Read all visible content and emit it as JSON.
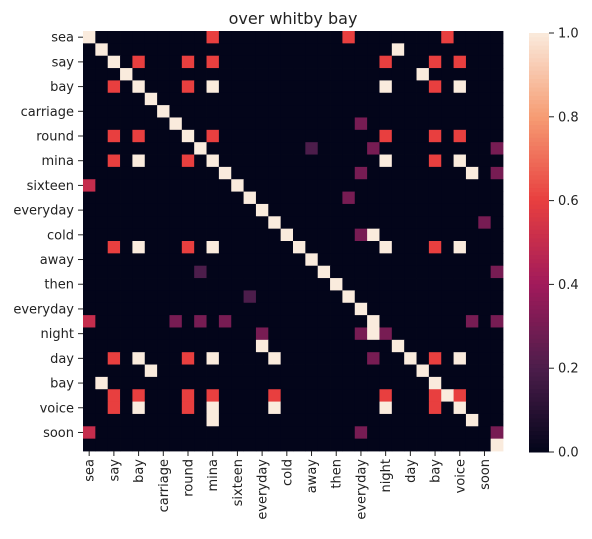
{
  "chart_data": {
    "type": "heatmap",
    "title": "over whitby bay",
    "xlabel": "",
    "ylabel": "",
    "row_labels": [
      "sea",
      "",
      "say",
      "",
      "bay",
      "",
      "carriage",
      "",
      "round",
      "",
      "mina",
      "",
      "sixteen",
      "",
      "everyday",
      "",
      "cold",
      "",
      "away",
      "",
      "then",
      "",
      "everyday",
      "",
      "night",
      "",
      "day",
      "",
      "bay",
      "",
      "voice",
      "",
      "soon",
      ""
    ],
    "col_labels": [
      "sea",
      "",
      "say",
      "",
      "bay",
      "",
      "carriage",
      "",
      "round",
      "",
      "mina",
      "",
      "sixteen",
      "",
      "everyday",
      "",
      "cold",
      "",
      "away",
      "",
      "then",
      "",
      "everyday",
      "",
      "night",
      "",
      "day",
      "",
      "bay",
      "",
      "voice",
      "",
      "soon",
      ""
    ],
    "zlim": [
      0,
      1
    ],
    "colorbar_ticks": [
      "0.0",
      "0.2",
      "0.4",
      "0.6",
      "0.8",
      "1.0"
    ],
    "colormap": [
      "#03051a",
      "#4c1d4b",
      "#a11a5b",
      "#e83f3f",
      "#f69c73",
      "#faebdd"
    ],
    "values": [
      [
        1,
        0,
        0,
        0,
        0,
        0,
        0,
        0,
        0,
        0,
        0.6,
        0,
        0,
        0,
        0,
        0,
        0,
        0,
        0,
        0,
        0,
        0.6,
        0,
        0,
        0,
        0,
        0,
        0,
        0,
        0.6,
        0,
        0,
        0,
        0
      ],
      [
        0,
        1,
        0,
        0,
        0,
        0,
        0,
        0,
        0,
        0,
        0,
        0,
        0,
        0,
        0,
        0,
        0,
        0,
        0,
        0,
        0,
        0,
        0,
        0,
        0,
        1,
        0,
        0,
        0,
        0,
        0,
        0,
        0,
        0
      ],
      [
        0,
        0,
        1,
        0,
        0.6,
        0,
        0,
        0,
        0.6,
        0,
        0.6,
        0,
        0,
        0,
        0,
        0,
        0,
        0,
        0,
        0,
        0,
        0,
        0,
        0,
        0.6,
        0,
        0,
        0,
        0.6,
        0,
        0.6,
        0,
        0,
        0
      ],
      [
        0,
        0,
        0,
        1,
        0,
        0,
        0,
        0,
        0,
        0,
        0,
        0,
        0,
        0,
        0,
        0,
        0,
        0,
        0,
        0,
        0,
        0,
        0,
        0,
        0,
        0,
        0,
        1,
        0,
        0,
        0,
        0,
        0,
        0
      ],
      [
        0,
        0,
        0.6,
        0,
        1,
        0,
        0,
        0,
        0.6,
        0,
        1,
        0,
        0,
        0,
        0,
        0,
        0,
        0,
        0,
        0,
        0,
        0,
        0,
        0,
        1,
        0,
        0,
        0,
        0.6,
        0,
        1,
        0,
        0,
        0
      ],
      [
        0,
        0,
        0,
        0,
        0,
        1,
        0,
        0,
        0,
        0,
        0,
        0,
        0,
        0,
        0,
        0,
        0,
        0,
        0,
        0,
        0,
        0,
        0,
        0,
        0,
        0,
        0,
        0,
        0,
        0,
        0,
        0,
        0,
        0
      ],
      [
        0,
        0,
        0,
        0,
        0,
        0,
        1,
        0,
        0,
        0,
        0,
        0,
        0,
        0,
        0,
        0,
        0,
        0,
        0,
        0,
        0,
        0,
        0,
        0,
        0,
        0,
        0,
        0,
        0,
        0,
        0,
        0,
        0,
        0
      ],
      [
        0,
        0,
        0,
        0,
        0,
        0,
        0,
        1,
        0,
        0,
        0,
        0,
        0,
        0,
        0,
        0,
        0,
        0,
        0,
        0,
        0,
        0,
        0.3,
        0,
        0,
        0,
        0,
        0,
        0,
        0,
        0,
        0,
        0,
        0
      ],
      [
        0,
        0,
        0.6,
        0,
        0.6,
        0,
        0,
        0,
        1,
        0,
        0.6,
        0,
        0,
        0,
        0,
        0,
        0,
        0,
        0,
        0,
        0,
        0,
        0,
        0,
        0.6,
        0,
        0,
        0,
        0.6,
        0,
        0.6,
        0,
        0,
        0
      ],
      [
        0,
        0,
        0,
        0,
        0,
        0,
        0,
        0,
        0,
        1,
        0,
        0,
        0,
        0,
        0,
        0,
        0,
        0,
        0.2,
        0,
        0,
        0,
        0,
        0.3,
        0,
        0,
        0,
        0,
        0,
        0,
        0,
        0,
        0,
        0.3
      ],
      [
        0,
        0,
        0.6,
        0,
        1,
        0,
        0,
        0,
        0.6,
        0,
        1,
        0,
        0,
        0,
        0,
        0,
        0,
        0,
        0,
        0,
        0,
        0,
        0,
        0,
        1,
        0,
        0,
        0,
        0.6,
        0,
        1,
        0,
        0,
        0
      ],
      [
        0,
        0,
        0,
        0,
        0,
        0,
        0,
        0,
        0,
        0,
        0,
        1,
        0,
        0,
        0,
        0,
        0,
        0,
        0,
        0,
        0,
        0,
        0.3,
        0,
        0,
        0,
        0,
        0,
        0,
        0,
        0,
        1,
        0,
        0.3
      ],
      [
        0.5,
        0,
        0,
        0,
        0,
        0,
        0,
        0,
        0,
        0,
        0,
        0,
        1,
        0,
        0,
        0,
        0,
        0,
        0,
        0,
        0,
        0,
        0,
        0,
        0,
        0,
        0,
        0,
        0,
        0,
        0,
        0,
        0,
        0
      ],
      [
        0,
        0,
        0,
        0,
        0,
        0,
        0,
        0,
        0,
        0,
        0,
        0,
        0,
        1,
        0,
        0,
        0,
        0,
        0,
        0,
        0,
        0.3,
        0,
        0,
        0,
        0,
        0,
        0,
        0,
        0,
        0,
        0,
        0,
        0
      ],
      [
        0,
        0,
        0,
        0,
        0,
        0,
        0,
        0,
        0,
        0,
        0,
        0,
        0,
        0,
        1,
        0,
        0,
        0,
        0,
        0,
        0,
        0,
        0,
        0,
        0,
        0,
        0,
        0,
        0,
        0,
        0,
        0,
        0,
        0
      ],
      [
        0,
        0,
        0,
        0,
        0,
        0,
        0,
        0,
        0,
        0,
        0,
        0,
        0,
        0,
        0,
        1,
        0,
        0,
        0,
        0,
        0,
        0,
        0,
        0,
        0,
        0,
        0,
        0,
        0,
        0,
        0,
        0,
        0.3,
        0
      ],
      [
        0,
        0,
        0,
        0,
        0,
        0,
        0,
        0,
        0,
        0,
        0,
        0,
        0,
        0,
        0,
        0,
        1,
        0,
        0,
        0,
        0,
        0,
        0.3,
        1,
        0,
        0,
        0,
        0,
        0,
        0,
        0,
        0,
        0,
        0
      ],
      [
        0,
        0,
        0.6,
        0,
        1,
        0,
        0,
        0,
        0.6,
        0,
        1,
        0,
        0,
        0,
        0,
        0,
        0,
        1,
        0,
        0,
        0,
        0,
        0,
        0,
        1,
        0,
        0,
        0,
        0.6,
        0,
        1,
        0,
        0,
        0
      ],
      [
        0,
        0,
        0,
        0,
        0,
        0,
        0,
        0,
        0,
        0,
        0,
        0,
        0,
        0,
        0,
        0,
        0,
        0,
        1,
        0,
        0,
        0,
        0,
        0,
        0,
        0,
        0,
        0,
        0,
        0,
        0,
        0,
        0,
        0
      ],
      [
        0,
        0,
        0,
        0,
        0,
        0,
        0,
        0,
        0,
        0.2,
        0,
        0,
        0,
        0,
        0,
        0,
        0,
        0,
        0,
        1,
        0,
        0,
        0,
        0,
        0,
        0,
        0,
        0,
        0,
        0,
        0,
        0,
        0,
        0.3
      ],
      [
        0,
        0,
        0,
        0,
        0,
        0,
        0,
        0,
        0,
        0,
        0,
        0,
        0,
        0,
        0,
        0,
        0,
        0,
        0,
        0,
        1,
        0,
        0,
        0,
        0,
        0,
        0,
        0,
        0,
        0,
        0,
        0,
        0,
        0
      ],
      [
        0,
        0,
        0,
        0,
        0,
        0,
        0,
        0,
        0,
        0,
        0,
        0,
        0,
        0.2,
        0,
        0,
        0,
        0,
        0,
        0,
        0,
        1,
        0,
        0,
        0,
        0,
        0,
        0,
        0,
        0,
        0,
        0,
        0,
        0
      ],
      [
        0,
        0,
        0,
        0,
        0,
        0,
        0,
        0,
        0,
        0,
        0,
        0,
        0,
        0,
        0,
        0,
        0,
        0,
        0,
        0,
        0,
        0,
        1,
        0,
        0,
        0,
        0,
        0,
        0,
        0,
        0,
        0,
        0,
        0
      ],
      [
        0.5,
        0,
        0,
        0,
        0,
        0,
        0,
        0.3,
        0,
        0.3,
        0,
        0.3,
        0,
        0,
        0,
        0,
        0,
        0,
        0,
        0,
        0,
        0,
        0,
        1,
        0,
        0,
        0,
        0,
        0,
        0,
        0,
        0.3,
        0,
        0.3
      ],
      [
        0,
        0,
        0,
        0,
        0,
        0,
        0,
        0,
        0,
        0,
        0,
        0,
        0,
        0,
        0.3,
        0,
        0,
        0,
        0,
        0,
        0,
        0,
        0.3,
        1,
        0.3,
        0,
        0,
        0,
        0,
        0,
        0,
        0,
        0,
        0
      ],
      [
        0,
        0,
        0,
        0,
        0,
        0,
        0,
        0,
        0,
        0,
        0,
        0,
        0,
        0,
        1,
        0,
        0,
        0,
        0,
        0,
        0,
        0,
        0,
        0,
        0,
        1,
        0,
        0,
        0,
        0,
        0,
        0,
        0,
        0
      ],
      [
        0,
        0,
        0.6,
        0,
        1,
        0,
        0,
        0,
        0.6,
        0,
        1,
        0,
        0,
        0,
        0,
        1,
        0,
        0,
        0,
        0,
        0,
        0,
        0,
        0.3,
        0,
        0,
        1,
        0,
        0.6,
        0,
        1,
        0,
        0,
        0
      ],
      [
        0,
        0,
        0,
        0,
        0,
        1,
        0,
        0,
        0,
        0,
        0,
        0,
        0,
        0,
        0,
        0,
        0,
        0,
        0,
        0,
        0,
        0,
        0,
        0,
        0,
        0,
        0,
        1,
        0,
        0,
        0,
        0,
        0,
        0
      ],
      [
        0,
        1,
        0,
        0,
        0,
        0,
        0,
        0,
        0,
        0,
        0,
        0,
        0,
        0,
        0,
        0,
        0,
        0,
        0,
        0,
        0,
        0,
        0,
        0,
        0,
        0,
        0,
        0,
        1,
        0,
        0,
        0,
        0,
        0
      ],
      [
        0,
        0,
        0.6,
        0,
        0.6,
        0,
        0,
        0,
        0.6,
        0,
        0.6,
        0,
        0,
        0,
        0,
        0.6,
        0,
        0,
        0,
        0,
        0,
        0,
        0,
        0,
        0.6,
        0,
        0,
        0,
        0.6,
        1,
        0.6,
        0,
        0,
        0
      ],
      [
        0,
        0,
        0.6,
        0,
        1,
        0,
        0,
        0,
        0.6,
        0,
        1,
        0,
        0,
        0,
        0,
        1,
        0,
        0,
        0,
        0,
        0,
        0,
        0,
        0,
        1,
        0,
        0,
        0,
        0.6,
        0,
        1,
        0,
        0,
        0
      ],
      [
        0,
        0,
        0,
        0,
        0,
        0,
        0,
        0,
        0,
        0,
        1,
        0,
        0,
        0,
        0,
        0,
        0,
        0,
        0,
        0,
        0,
        0,
        0,
        0,
        0,
        0,
        0,
        0,
        0,
        0,
        0,
        1,
        0,
        0
      ],
      [
        0.5,
        0,
        0,
        0,
        0,
        0,
        0,
        0,
        0,
        0,
        0,
        0,
        0,
        0,
        0,
        0,
        0,
        0,
        0,
        0,
        0,
        0,
        0.3,
        0,
        0,
        0,
        0,
        0,
        0,
        0,
        0,
        0,
        0,
        0.3
      ],
      [
        0,
        0,
        0,
        0,
        0,
        0,
        0,
        0,
        0,
        0,
        0,
        0,
        0,
        0,
        0,
        0,
        0,
        0,
        0,
        0,
        0,
        0,
        0,
        0,
        0,
        0,
        0,
        0,
        0,
        0,
        0,
        0,
        0,
        1
      ]
    ]
  }
}
